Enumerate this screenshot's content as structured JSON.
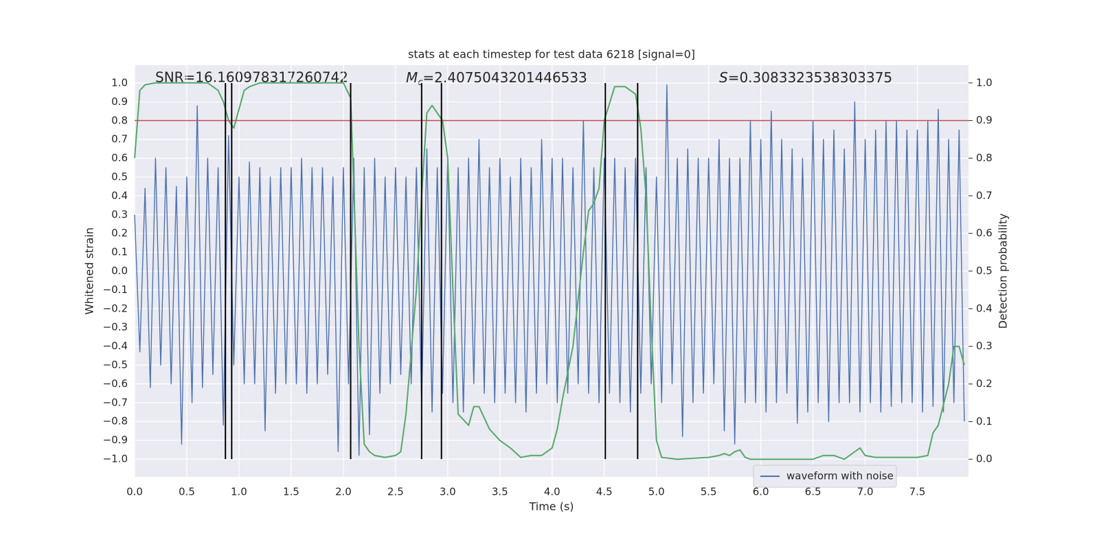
{
  "chart_data": {
    "type": "line",
    "title": "stats at each timestep for test data 6218 [signal=0]",
    "xlabel": "Time (s)",
    "ylabel": "Whitened strain",
    "y2label": "Detection probability",
    "annotations": [
      {
        "label": "SNR=16.160978317260742"
      },
      {
        "symbol": "M",
        "subscript": "c",
        "label": "=2.4075043201446533"
      },
      {
        "symbol": "S",
        "label": "=0.3083323538303375"
      }
    ],
    "xlim": [
      0,
      7.99
    ],
    "ylim": [
      -1.095,
      1.095
    ],
    "y2lim": [
      -0.047,
      1.047
    ],
    "grid": true,
    "legend": "lower right",
    "xticks": [
      {
        "value": 0,
        "label": "0.0"
      },
      {
        "value": 0.5,
        "label": "0.5"
      },
      {
        "value": 1,
        "label": "1.0"
      },
      {
        "value": 1.5,
        "label": "1.5"
      },
      {
        "value": 2,
        "label": "2.0"
      },
      {
        "value": 2.5,
        "label": "2.5"
      },
      {
        "value": 3,
        "label": "3.0"
      },
      {
        "value": 3.5,
        "label": "3.5"
      },
      {
        "value": 4,
        "label": "4.0"
      },
      {
        "value": 4.5,
        "label": "4.5"
      },
      {
        "value": 5,
        "label": "5.0"
      },
      {
        "value": 5.5,
        "label": "5.5"
      },
      {
        "value": 6,
        "label": "6.0"
      },
      {
        "value": 6.5,
        "label": "6.5"
      },
      {
        "value": 7,
        "label": "7.0"
      },
      {
        "value": 7.5,
        "label": "7.5"
      }
    ],
    "yticks": [
      {
        "value": -1,
        "label": "−1.0"
      },
      {
        "value": -0.9,
        "label": "−0.9"
      },
      {
        "value": -0.8,
        "label": "−0.8"
      },
      {
        "value": -0.7,
        "label": "−0.7"
      },
      {
        "value": -0.6,
        "label": "−0.6"
      },
      {
        "value": -0.5,
        "label": "−0.5"
      },
      {
        "value": -0.4,
        "label": "−0.4"
      },
      {
        "value": -0.3,
        "label": "−0.3"
      },
      {
        "value": -0.2,
        "label": "−0.2"
      },
      {
        "value": -0.1,
        "label": "−0.1"
      },
      {
        "value": 0,
        "label": "0.0"
      },
      {
        "value": 0.1,
        "label": "0.1"
      },
      {
        "value": 0.2,
        "label": "0.2"
      },
      {
        "value": 0.3,
        "label": "0.3"
      },
      {
        "value": 0.4,
        "label": "0.4"
      },
      {
        "value": 0.5,
        "label": "0.5"
      },
      {
        "value": 0.6,
        "label": "0.6"
      },
      {
        "value": 0.7,
        "label": "0.7"
      },
      {
        "value": 0.8,
        "label": "0.8"
      },
      {
        "value": 0.9,
        "label": "0.9"
      },
      {
        "value": 1,
        "label": "1.0"
      }
    ],
    "y2ticks": [
      {
        "value": 0,
        "label": "0.0"
      },
      {
        "value": 0.1,
        "label": "0.1"
      },
      {
        "value": 0.2,
        "label": "0.2"
      },
      {
        "value": 0.3,
        "label": "0.3"
      },
      {
        "value": 0.4,
        "label": "0.4"
      },
      {
        "value": 0.5,
        "label": "0.5"
      },
      {
        "value": 0.6,
        "label": "0.6"
      },
      {
        "value": 0.7,
        "label": "0.7"
      },
      {
        "value": 0.8,
        "label": "0.8"
      },
      {
        "value": 0.9,
        "label": "0.9"
      },
      {
        "value": 1,
        "label": "1.0"
      }
    ],
    "series": [
      {
        "name": "waveform with noise",
        "color": "#4c72b0",
        "x": [
          0,
          0.05,
          0.1,
          0.15,
          0.2,
          0.25,
          0.3,
          0.35,
          0.4,
          0.45,
          0.5,
          0.55,
          0.6,
          0.65,
          0.7,
          0.75,
          0.8,
          0.85,
          0.9,
          0.95,
          1,
          1.05,
          1.1,
          1.15,
          1.2,
          1.25,
          1.3,
          1.35,
          1.4,
          1.45,
          1.5,
          1.55,
          1.6,
          1.65,
          1.7,
          1.75,
          1.8,
          1.85,
          1.9,
          1.95,
          2,
          2.05,
          2.1,
          2.15,
          2.2,
          2.25,
          2.3,
          2.35,
          2.4,
          2.45,
          2.5,
          2.55,
          2.6,
          2.65,
          2.7,
          2.75,
          2.8,
          2.85,
          2.9,
          2.95,
          3,
          3.05,
          3.1,
          3.15,
          3.2,
          3.25,
          3.3,
          3.35,
          3.4,
          3.45,
          3.5,
          3.55,
          3.6,
          3.65,
          3.7,
          3.75,
          3.8,
          3.85,
          3.9,
          3.95,
          4,
          4.05,
          4.1,
          4.15,
          4.2,
          4.25,
          4.3,
          4.35,
          4.4,
          4.45,
          4.5,
          4.55,
          4.6,
          4.65,
          4.7,
          4.75,
          4.8,
          4.85,
          4.9,
          4.95,
          5,
          5.05,
          5.1,
          5.15,
          5.2,
          5.25,
          5.3,
          5.35,
          5.4,
          5.45,
          5.5,
          5.55,
          5.6,
          5.65,
          5.7,
          5.75,
          5.8,
          5.85,
          5.9,
          5.95,
          6,
          6.05,
          6.1,
          6.15,
          6.2,
          6.25,
          6.3,
          6.35,
          6.4,
          6.45,
          6.5,
          6.55,
          6.6,
          6.65,
          6.7,
          6.75,
          6.8,
          6.85,
          6.9,
          6.95,
          7,
          7.05,
          7.1,
          7.15,
          7.2,
          7.25,
          7.3,
          7.35,
          7.4,
          7.45,
          7.5,
          7.55,
          7.6,
          7.65,
          7.7,
          7.75,
          7.8,
          7.85,
          7.9,
          7.95
        ],
        "values": [
          0.3,
          -0.43,
          0.44,
          -0.62,
          0.6,
          -0.5,
          0.55,
          -0.6,
          0.45,
          -0.92,
          0.5,
          -0.7,
          0.88,
          -0.62,
          0.6,
          -0.55,
          0.55,
          -0.82,
          0.72,
          -0.5,
          0.5,
          -0.6,
          0.58,
          -0.6,
          0.55,
          -0.85,
          0.5,
          -0.65,
          0.55,
          -0.6,
          0.55,
          -0.6,
          0.6,
          -0.65,
          0.55,
          -0.6,
          0.55,
          -0.55,
          0.5,
          -0.96,
          0.55,
          -0.6,
          0.6,
          -0.98,
          0.55,
          -0.87,
          0.6,
          -0.65,
          0.5,
          -0.6,
          0.55,
          -0.55,
          0.5,
          -0.6,
          0.55,
          -0.7,
          0.65,
          -0.75,
          0.55,
          -0.65,
          0.6,
          -0.7,
          0.55,
          -0.75,
          0.6,
          -0.6,
          0.7,
          -0.65,
          0.55,
          -0.7,
          0.6,
          -0.65,
          0.5,
          -0.7,
          0.6,
          -0.75,
          0.55,
          -0.65,
          0.7,
          -0.6,
          0.6,
          -0.7,
          0.6,
          -0.65,
          0.55,
          -0.6,
          0.8,
          -0.65,
          0.55,
          -0.7,
          0.6,
          -0.65,
          0.6,
          -0.7,
          0.55,
          -0.75,
          0.6,
          -0.65,
          0.55,
          -0.6,
          0.5,
          -0.7,
          0.99,
          -0.6,
          0.6,
          -0.88,
          0.65,
          -0.7,
          0.6,
          -0.65,
          0.6,
          -0.6,
          0.7,
          -0.85,
          0.6,
          -0.92,
          0.6,
          -0.7,
          0.8,
          -0.7,
          0.7,
          -0.75,
          0.85,
          -0.7,
          0.7,
          -0.65,
          0.65,
          -0.81,
          0.6,
          -0.75,
          0.8,
          -0.7,
          0.7,
          -0.8,
          0.75,
          -0.7,
          0.65,
          -0.7,
          0.9,
          -0.75,
          0.7,
          -0.7,
          0.75,
          -0.75,
          0.8,
          -0.72,
          0.8,
          -0.7,
          0.75,
          -0.7,
          0.75,
          -0.75,
          0.8,
          -0.72,
          0.86,
          -0.75,
          0.7,
          -0.7,
          0.75,
          -0.8
        ]
      },
      {
        "color": "#55a868",
        "axis": "y2",
        "x": [
          0,
          0.05,
          0.1,
          0.2,
          0.7,
          0.8,
          0.85,
          0.9,
          0.95,
          1,
          1.05,
          1.1,
          1.2,
          2,
          2.07,
          2.1,
          2.15,
          2.2,
          2.25,
          2.3,
          2.4,
          2.5,
          2.55,
          2.6,
          2.7,
          2.75,
          2.8,
          2.85,
          2.9,
          2.95,
          3,
          3.05,
          3.1,
          3.2,
          3.25,
          3.3,
          3.4,
          3.5,
          3.6,
          3.7,
          3.8,
          3.9,
          4,
          4.05,
          4.1,
          4.2,
          4.3,
          4.35,
          4.4,
          4.45,
          4.5,
          4.6,
          4.7,
          4.75,
          4.8,
          4.85,
          4.9,
          4.95,
          5,
          5.05,
          5.2,
          5.5,
          5.6,
          5.65,
          5.7,
          5.75,
          5.8,
          5.85,
          5.9,
          6.2,
          6.5,
          6.6,
          6.7,
          6.8,
          6.9,
          6.95,
          7,
          7.1,
          7.4,
          7.5,
          7.6,
          7.65,
          7.7,
          7.8,
          7.85,
          7.9,
          7.95
        ],
        "values": [
          0.8,
          0.98,
          0.995,
          1,
          1,
          0.98,
          0.95,
          0.9,
          0.88,
          0.93,
          0.98,
          0.99,
          1,
          1,
          0.96,
          0.72,
          0.3,
          0.04,
          0.02,
          0.01,
          0.005,
          0.01,
          0.02,
          0.12,
          0.45,
          0.7,
          0.92,
          0.94,
          0.92,
          0.9,
          0.8,
          0.45,
          0.12,
          0.09,
          0.14,
          0.14,
          0.08,
          0.05,
          0.03,
          0.005,
          0.01,
          0.01,
          0.03,
          0.08,
          0.16,
          0.3,
          0.55,
          0.66,
          0.68,
          0.72,
          0.9,
          0.99,
          0.99,
          0.98,
          0.97,
          0.88,
          0.7,
          0.35,
          0.05,
          0.005,
          0,
          0.005,
          0.01,
          0.015,
          0.01,
          0.02,
          0.025,
          0.005,
          0,
          0,
          0,
          0.01,
          0.01,
          0,
          0.02,
          0.03,
          0.01,
          0.005,
          0.005,
          0.005,
          0.01,
          0.07,
          0.09,
          0.2,
          0.3,
          0.3,
          0.25
        ]
      }
    ],
    "vlines": [
      0.87,
      0.93,
      2.07,
      2.75,
      2.94,
      4.51,
      4.82
    ],
    "vline_range": [
      -1,
      1
    ],
    "vline_color": "#000000",
    "threshold": {
      "value": 0.9,
      "axis": "y2",
      "color": "#c44e52"
    }
  }
}
